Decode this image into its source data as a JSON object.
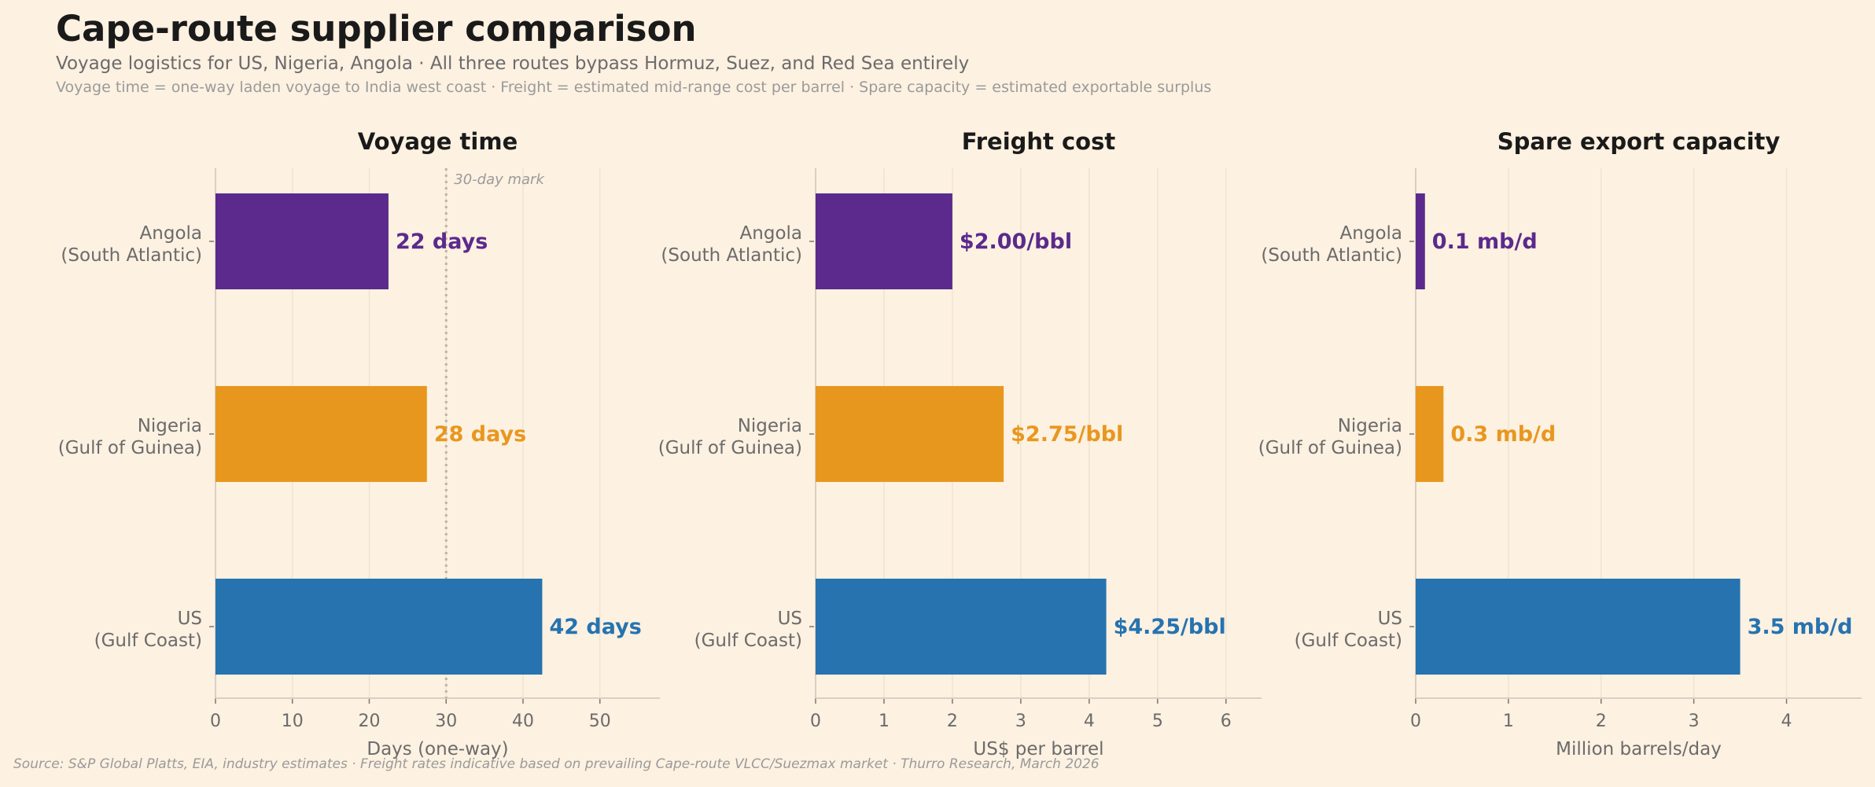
{
  "header": {
    "title": "Cape-route supplier comparison",
    "subtitle": "Voyage logistics for US, Nigeria, Angola  ·  All three routes bypass Hormuz, Suez, and Red Sea entirely",
    "note": "Voyage time = one-way laden voyage to India west coast  ·  Freight = estimated mid-range cost per barrel  ·  Spare capacity = estimated exportable surplus"
  },
  "footer": {
    "source": "Source: S&P Global Platts, EIA, industry estimates  ·  Freight rates indicative based on prevailing Cape-route VLCC/Suezmax market  ·  Thurro Research, March 2026"
  },
  "colors": {
    "Angola": "#5b2a8c",
    "Nigeria": "#e8971e",
    "US": "#2673b0",
    "background": "#fdf1e1"
  },
  "chart_data": [
    {
      "type": "bar",
      "orientation": "horizontal",
      "title": "Voyage time",
      "xlabel": "Days (one-way)",
      "categories": [
        [
          "Angola",
          "(South Atlantic)"
        ],
        [
          "Nigeria",
          "(Gulf of Guinea)"
        ],
        [
          "US",
          "(Gulf Coast)"
        ]
      ],
      "values": [
        22.5,
        27.5,
        42.5
      ],
      "data_labels": [
        "22 days",
        "28 days",
        "42 days"
      ],
      "xlim": [
        0,
        57.8
      ],
      "xticks": [
        "0",
        "10",
        "20",
        "30",
        "40",
        "50"
      ],
      "reference_line": {
        "value": 30,
        "label": "30-day mark",
        "style": "dotted"
      },
      "grid": "x"
    },
    {
      "type": "bar",
      "orientation": "horizontal",
      "title": "Freight cost",
      "xlabel": "US$ per barrel",
      "categories": [
        [
          "Angola",
          "(South Atlantic)"
        ],
        [
          "Nigeria",
          "(Gulf of Guinea)"
        ],
        [
          "US",
          "(Gulf Coast)"
        ]
      ],
      "values": [
        2.0,
        2.75,
        4.25
      ],
      "data_labels": [
        "$2.00/bbl",
        "$2.75/bbl",
        "$4.25/bbl"
      ],
      "xlim": [
        0,
        6.52
      ],
      "xticks": [
        "0",
        "1",
        "2",
        "3",
        "4",
        "5",
        "6"
      ],
      "grid": "x"
    },
    {
      "type": "bar",
      "orientation": "horizontal",
      "title": "Spare export capacity",
      "xlabel": "Million barrels/day",
      "categories": [
        [
          "Angola",
          "(South Atlantic)"
        ],
        [
          "Nigeria",
          "(Gulf of Guinea)"
        ],
        [
          "US",
          "(Gulf Coast)"
        ]
      ],
      "values": [
        0.1,
        0.3,
        3.5
      ],
      "data_labels": [
        "0.1 mb/d",
        "0.3 mb/d",
        "3.5 mb/d"
      ],
      "xlim": [
        0,
        4.81
      ],
      "xticks": [
        "0",
        "1",
        "2",
        "3",
        "4"
      ],
      "grid": "x"
    }
  ]
}
